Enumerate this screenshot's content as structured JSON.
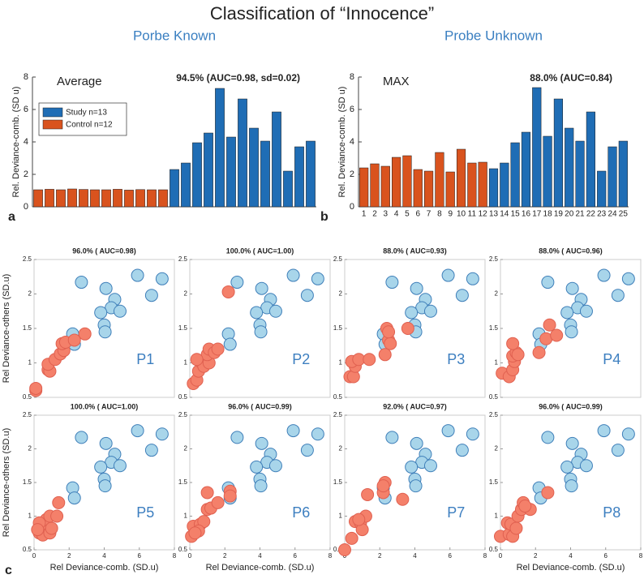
{
  "title": "Classification of “Innocence”",
  "panel_labels": [
    "a",
    "b",
    "c"
  ],
  "chart_data": [
    {
      "type": "bar",
      "title": "Porbe Known",
      "label": "Average",
      "annotation": "94.5% (AUC=0.98, sd=0.02)",
      "ylabel": "Rel. Deviance-comb. (SD u)",
      "legend": "upper left",
      "categories": [
        null,
        null,
        null,
        null,
        null,
        null,
        null,
        null,
        null,
        null,
        null,
        null,
        null,
        null,
        null,
        null,
        null,
        null,
        null,
        null,
        null,
        null,
        null,
        null,
        null
      ],
      "series": [
        {
          "name": "Study n=13",
          "color": "#1f6db5",
          "values": [
            null,
            null,
            null,
            null,
            null,
            null,
            null,
            null,
            null,
            null,
            null,
            null,
            2.3,
            2.7,
            3.95,
            4.55,
            7.3,
            4.3,
            6.65,
            4.85,
            4.05,
            5.85,
            2.2,
            3.7,
            4.05
          ]
        },
        {
          "name": "Control n=12",
          "color": "#d9531e",
          "values": [
            1.05,
            1.08,
            1.05,
            1.1,
            1.07,
            1.05,
            1.05,
            1.08,
            1.03,
            1.06,
            1.05,
            1.05,
            null,
            null,
            null,
            null,
            null,
            null,
            null,
            null,
            null,
            null,
            null,
            null,
            null
          ]
        }
      ],
      "ylim": [
        0,
        8
      ],
      "yticks": [
        0,
        2,
        4,
        6,
        8
      ]
    },
    {
      "type": "bar",
      "title": "Probe Unknown",
      "label": "MAX",
      "annotation": "88.0% (AUC=0.84)",
      "ylabel": "Rel. Deviance-comb. (SD u)",
      "categories": [
        "1",
        "2",
        "3",
        "4",
        "5",
        "6",
        "7",
        "8",
        "9",
        "10",
        "11",
        "12",
        "13",
        "14",
        "15",
        "16",
        "17",
        "18",
        "19",
        "20",
        "21",
        "22",
        "23",
        "24",
        "25"
      ],
      "series": [
        {
          "color": "#1f6db5",
          "values": [
            null,
            null,
            null,
            null,
            null,
            null,
            null,
            null,
            null,
            null,
            null,
            null,
            2.35,
            2.7,
            3.95,
            4.6,
            7.35,
            4.35,
            6.65,
            4.85,
            4.05,
            5.85,
            2.2,
            3.7,
            4.05
          ]
        },
        {
          "color": "#d9531e",
          "values": [
            2.4,
            2.65,
            2.5,
            3.05,
            3.15,
            2.3,
            2.2,
            3.35,
            2.15,
            3.55,
            2.7,
            2.75,
            null,
            null,
            null,
            null,
            null,
            null,
            null,
            null,
            null,
            null,
            null,
            null,
            null
          ]
        }
      ],
      "ylim": [
        0,
        8
      ],
      "yticks": [
        0,
        2,
        4,
        6,
        8
      ]
    },
    {
      "type": "scatter",
      "title": "96.0% ( AUC=0.98)",
      "label": "P1",
      "ylabel": "Rel Deviance-others (SD.u)",
      "xlim": [
        0,
        8
      ],
      "ylim": [
        0.5,
        2.5
      ],
      "yticks": [
        0.5,
        1,
        1.5,
        2,
        2.5
      ],
      "series": [
        {
          "color": "#a8d5ea",
          "x": [
            2.7,
            4.1,
            5.9,
            7.3,
            6.7,
            4.6,
            4.4,
            4.9,
            3.8,
            4.0,
            4.05,
            2.2,
            2.3
          ],
          "y": [
            2.17,
            2.08,
            2.27,
            2.22,
            1.98,
            1.92,
            1.8,
            1.75,
            1.73,
            1.55,
            1.45,
            1.42,
            1.27
          ]
        },
        {
          "color": "#f4806a",
          "x": [
            0.1,
            0.1,
            0.8,
            0.9,
            0.8,
            1.2,
            1.5,
            1.7,
            1.6,
            1.8,
            2.3,
            2.9
          ],
          "y": [
            0.6,
            0.63,
            0.9,
            0.88,
            0.98,
            1.05,
            1.13,
            1.18,
            1.28,
            1.3,
            1.33,
            1.42
          ]
        }
      ]
    },
    {
      "type": "scatter",
      "title": "100.0% ( AUC=1.00)",
      "label": "P2",
      "xlim": [
        0,
        8
      ],
      "ylim": [
        0.5,
        2.5
      ],
      "yticks": [
        0.5,
        1,
        1.5,
        2,
        2.5
      ],
      "series": [
        {
          "color": "#a8d5ea",
          "x": [
            2.7,
            4.1,
            5.9,
            7.3,
            6.7,
            4.6,
            4.4,
            4.9,
            3.8,
            4.0,
            4.05,
            2.2,
            2.3
          ],
          "y": [
            2.17,
            2.08,
            2.27,
            2.22,
            1.98,
            1.92,
            1.8,
            1.75,
            1.73,
            1.55,
            1.45,
            1.42,
            1.27
          ]
        },
        {
          "color": "#f4806a",
          "x": [
            0.2,
            0.4,
            0.5,
            0.6,
            0.8,
            1.1,
            1.0,
            1.1,
            1.4,
            1.6,
            2.2,
            0.4
          ],
          "y": [
            0.7,
            0.75,
            0.88,
            1.02,
            0.95,
            1.0,
            1.12,
            1.2,
            1.15,
            1.2,
            2.03,
            1.05
          ]
        }
      ]
    },
    {
      "type": "scatter",
      "title": "88.0% ( AUC=0.93)",
      "label": "P3",
      "xlim": [
        0,
        8
      ],
      "ylim": [
        0.5,
        2.5
      ],
      "yticks": [
        0.5,
        1,
        1.5,
        2,
        2.5
      ],
      "series": [
        {
          "color": "#a8d5ea",
          "x": [
            2.7,
            4.1,
            5.9,
            7.3,
            6.7,
            4.6,
            4.4,
            4.9,
            3.8,
            4.0,
            4.05,
            2.2,
            2.3
          ],
          "y": [
            2.17,
            2.08,
            2.27,
            2.22,
            1.98,
            1.92,
            1.8,
            1.75,
            1.73,
            1.55,
            1.45,
            1.42,
            1.27
          ]
        },
        {
          "color": "#f4806a",
          "x": [
            0.3,
            0.5,
            0.6,
            0.4,
            0.8,
            1.4,
            2.3,
            2.5,
            2.6,
            2.4,
            2.5,
            3.6
          ],
          "y": [
            0.8,
            0.8,
            0.95,
            1.02,
            1.05,
            1.05,
            1.12,
            1.33,
            1.28,
            1.5,
            1.45,
            1.5
          ]
        }
      ]
    },
    {
      "type": "scatter",
      "title": "88.0% ( AUC=0.96)",
      "label": "P4",
      "xlim": [
        0,
        8
      ],
      "ylim": [
        0.5,
        2.5
      ],
      "yticks": [
        0.5,
        1,
        1.5,
        2,
        2.5
      ],
      "series": [
        {
          "color": "#a8d5ea",
          "x": [
            2.7,
            4.1,
            5.9,
            7.3,
            6.7,
            4.6,
            4.4,
            4.9,
            3.8,
            4.0,
            4.05,
            2.2,
            2.3
          ],
          "y": [
            2.17,
            2.08,
            2.27,
            2.22,
            1.98,
            1.92,
            1.8,
            1.75,
            1.73,
            1.55,
            1.45,
            1.42,
            1.27
          ]
        },
        {
          "color": "#f4806a",
          "x": [
            0.1,
            0.5,
            0.7,
            0.8,
            0.7,
            0.9,
            0.7,
            1.0,
            2.2,
            2.6,
            2.8,
            3.2
          ],
          "y": [
            0.85,
            0.8,
            0.9,
            1.02,
            1.1,
            1.15,
            1.28,
            1.12,
            1.15,
            1.35,
            1.55,
            1.4
          ]
        }
      ]
    },
    {
      "type": "scatter",
      "title": "100.0% ( AUC=1.00)",
      "label": "P5",
      "ylabel": "Rel Deviance-others (SD.u)",
      "xlabel": "Rel Deviance-comb. (SD.u)",
      "xlim": [
        0,
        8
      ],
      "xticks": [
        0,
        2,
        4,
        6,
        8
      ],
      "ylim": [
        0.5,
        2.5
      ],
      "yticks": [
        0.5,
        1,
        1.5,
        2,
        2.5
      ],
      "series": [
        {
          "color": "#a8d5ea",
          "x": [
            2.7,
            4.1,
            5.9,
            7.3,
            6.7,
            4.6,
            4.4,
            4.9,
            3.8,
            4.0,
            4.05,
            2.2,
            2.3
          ],
          "y": [
            2.17,
            2.08,
            2.27,
            2.22,
            1.98,
            1.92,
            1.8,
            1.75,
            1.73,
            1.55,
            1.45,
            1.42,
            1.27
          ]
        },
        {
          "color": "#f4806a",
          "x": [
            0.3,
            0.5,
            0.6,
            0.4,
            0.7,
            0.9,
            1.0,
            0.9,
            1.3,
            1.4,
            0.3,
            0.2
          ],
          "y": [
            0.75,
            0.72,
            0.85,
            0.88,
            0.95,
            0.75,
            0.82,
            1.0,
            1.0,
            1.2,
            0.9,
            0.8
          ]
        }
      ]
    },
    {
      "type": "scatter",
      "title": "96.0% ( AUC=0.99)",
      "label": "P6",
      "xlabel": "Rel Deviance-comb. (SD.u)",
      "xlim": [
        0,
        8
      ],
      "xticks": [
        0,
        2,
        4,
        6,
        8
      ],
      "ylim": [
        0.5,
        2.5
      ],
      "yticks": [
        0.5,
        1,
        1.5,
        2,
        2.5
      ],
      "series": [
        {
          "color": "#a8d5ea",
          "x": [
            2.7,
            4.1,
            5.9,
            7.3,
            6.7,
            4.6,
            4.4,
            4.9,
            3.8,
            4.0,
            4.05,
            2.2,
            2.3
          ],
          "y": [
            2.17,
            2.08,
            2.27,
            2.22,
            1.98,
            1.92,
            1.8,
            1.75,
            1.73,
            1.55,
            1.45,
            1.42,
            1.27
          ]
        },
        {
          "color": "#f4806a",
          "x": [
            0.1,
            0.2,
            0.6,
            0.8,
            1.0,
            1.2,
            1.0,
            2.3,
            1.6,
            2.3,
            0.5,
            0.3
          ],
          "y": [
            0.7,
            0.85,
            0.88,
            0.92,
            1.1,
            1.12,
            1.35,
            1.37,
            1.2,
            1.3,
            0.78,
            0.75
          ]
        }
      ]
    },
    {
      "type": "scatter",
      "title": "92.0% ( AUC=0.97)",
      "label": "P7",
      "xlim": [
        0,
        8
      ],
      "xticks": [
        0,
        2,
        4,
        6,
        8
      ],
      "ylim": [
        0.5,
        2.5
      ],
      "yticks": [
        0.5,
        1,
        1.5,
        2,
        2.5
      ],
      "series": [
        {
          "color": "#a8d5ea",
          "x": [
            2.7,
            4.1,
            5.9,
            7.3,
            6.7,
            4.6,
            4.4,
            4.9,
            3.8,
            4.0,
            4.05,
            2.2,
            2.3
          ],
          "y": [
            2.17,
            2.08,
            2.27,
            2.22,
            1.98,
            1.92,
            1.8,
            1.75,
            1.73,
            1.55,
            1.45,
            1.42,
            1.27
          ]
        },
        {
          "color": "#f4806a",
          "x": [
            0.0,
            0.4,
            0.6,
            0.9,
            1.2,
            1.0,
            1.3,
            2.2,
            2.3,
            2.2,
            3.3,
            0.8
          ],
          "y": [
            0.5,
            0.67,
            0.92,
            0.9,
            1.0,
            0.8,
            1.32,
            1.35,
            1.5,
            1.45,
            1.25,
            0.95
          ]
        }
      ]
    },
    {
      "type": "scatter",
      "title": "96.0% ( AUC=0.99)",
      "label": "P8",
      "xlabel": "Rel Deviance-comb. (SD.u)",
      "xlim": [
        0,
        8
      ],
      "xticks": [
        0,
        2,
        4,
        6,
        8
      ],
      "ylim": [
        0.5,
        2.5
      ],
      "yticks": [
        0.5,
        1,
        1.5,
        2,
        2.5
      ],
      "series": [
        {
          "color": "#a8d5ea",
          "x": [
            2.7,
            4.1,
            5.9,
            7.3,
            6.7,
            4.6,
            4.4,
            4.9,
            3.8,
            4.0,
            4.05,
            2.2,
            2.3
          ],
          "y": [
            2.17,
            2.08,
            2.27,
            2.22,
            1.98,
            1.92,
            1.8,
            1.75,
            1.73,
            1.55,
            1.45,
            1.42,
            1.27
          ]
        },
        {
          "color": "#f4806a",
          "x": [
            0.0,
            0.5,
            0.7,
            0.4,
            0.6,
            0.9,
            1.0,
            1.2,
            1.3,
            1.7,
            1.4,
            2.7
          ],
          "y": [
            0.7,
            0.73,
            0.7,
            0.9,
            0.88,
            0.82,
            1.0,
            1.1,
            1.2,
            1.1,
            1.15,
            1.35
          ]
        }
      ]
    }
  ]
}
